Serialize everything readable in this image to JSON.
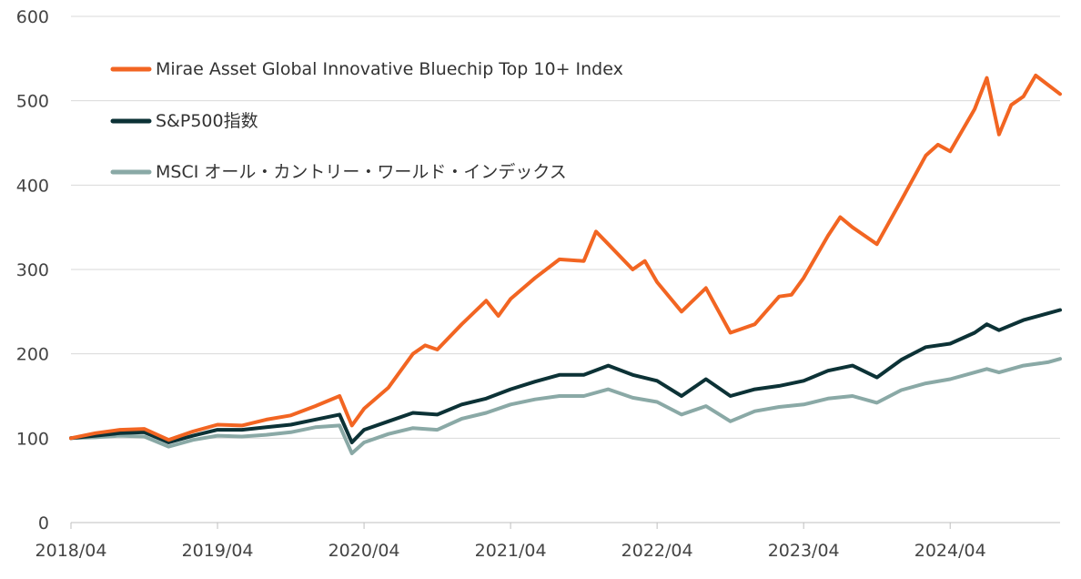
{
  "chart_data": {
    "type": "line",
    "title": "",
    "xlabel": "",
    "ylabel": "",
    "ylim": [
      0,
      600
    ],
    "xlim": [
      "2018/04",
      "2025/01"
    ],
    "y_ticks": [
      0,
      100,
      200,
      300,
      400,
      500,
      600
    ],
    "x_tick_labels": [
      "2018/04",
      "2019/04",
      "2020/04",
      "2021/04",
      "2022/04",
      "2023/04",
      "2024/04"
    ],
    "x_tick_dates": [
      "2018/04",
      "2019/04",
      "2020/04",
      "2021/04",
      "2022/04",
      "2023/04",
      "2024/04"
    ],
    "grid": "horizontal",
    "legend_position": "top-left",
    "series": [
      {
        "name": "Mirae Asset Global Innovative Bluechip Top 10+ Index",
        "color": "#f26522",
        "points": [
          [
            "2018/04",
            100
          ],
          [
            "2018/06",
            106
          ],
          [
            "2018/08",
            110
          ],
          [
            "2018/10",
            111
          ],
          [
            "2018/12",
            98
          ],
          [
            "2019/02",
            108
          ],
          [
            "2019/04",
            116
          ],
          [
            "2019/06",
            115
          ],
          [
            "2019/08",
            122
          ],
          [
            "2019/10",
            127
          ],
          [
            "2019/12",
            138
          ],
          [
            "2020/02",
            150
          ],
          [
            "2020/03",
            115
          ],
          [
            "2020/04",
            135
          ],
          [
            "2020/06",
            160
          ],
          [
            "2020/08",
            200
          ],
          [
            "2020/09",
            210
          ],
          [
            "2020/10",
            205
          ],
          [
            "2020/12",
            235
          ],
          [
            "2021/02",
            263
          ],
          [
            "2021/03",
            245
          ],
          [
            "2021/04",
            265
          ],
          [
            "2021/06",
            290
          ],
          [
            "2021/08",
            312
          ],
          [
            "2021/10",
            310
          ],
          [
            "2021/11",
            345
          ],
          [
            "2021/12",
            330
          ],
          [
            "2022/02",
            300
          ],
          [
            "2022/03",
            310
          ],
          [
            "2022/04",
            285
          ],
          [
            "2022/06",
            250
          ],
          [
            "2022/08",
            278
          ],
          [
            "2022/10",
            225
          ],
          [
            "2022/12",
            235
          ],
          [
            "2023/02",
            268
          ],
          [
            "2023/03",
            270
          ],
          [
            "2023/04",
            290
          ],
          [
            "2023/06",
            340
          ],
          [
            "2023/07",
            362
          ],
          [
            "2023/08",
            350
          ],
          [
            "2023/10",
            330
          ],
          [
            "2023/12",
            382
          ],
          [
            "2024/02",
            435
          ],
          [
            "2024/03",
            448
          ],
          [
            "2024/04",
            440
          ],
          [
            "2024/06",
            490
          ],
          [
            "2024/07",
            527
          ],
          [
            "2024/08",
            460
          ],
          [
            "2024/09",
            495
          ],
          [
            "2024/10",
            505
          ],
          [
            "2024/11",
            530
          ],
          [
            "2025/01",
            508
          ]
        ]
      },
      {
        "name": "S&P500指数",
        "color": "#0c3236",
        "points": [
          [
            "2018/04",
            100
          ],
          [
            "2018/06",
            103
          ],
          [
            "2018/08",
            106
          ],
          [
            "2018/10",
            107
          ],
          [
            "2018/12",
            95
          ],
          [
            "2019/02",
            103
          ],
          [
            "2019/04",
            110
          ],
          [
            "2019/06",
            110
          ],
          [
            "2019/08",
            113
          ],
          [
            "2019/10",
            116
          ],
          [
            "2019/12",
            122
          ],
          [
            "2020/02",
            128
          ],
          [
            "2020/03",
            95
          ],
          [
            "2020/04",
            110
          ],
          [
            "2020/06",
            120
          ],
          [
            "2020/08",
            130
          ],
          [
            "2020/10",
            128
          ],
          [
            "2020/12",
            140
          ],
          [
            "2021/02",
            147
          ],
          [
            "2021/04",
            158
          ],
          [
            "2021/06",
            167
          ],
          [
            "2021/08",
            175
          ],
          [
            "2021/10",
            175
          ],
          [
            "2021/12",
            186
          ],
          [
            "2022/02",
            175
          ],
          [
            "2022/04",
            168
          ],
          [
            "2022/06",
            150
          ],
          [
            "2022/08",
            170
          ],
          [
            "2022/10",
            150
          ],
          [
            "2022/12",
            158
          ],
          [
            "2023/02",
            162
          ],
          [
            "2023/04",
            168
          ],
          [
            "2023/06",
            180
          ],
          [
            "2023/08",
            186
          ],
          [
            "2023/10",
            172
          ],
          [
            "2023/12",
            193
          ],
          [
            "2024/02",
            208
          ],
          [
            "2024/04",
            212
          ],
          [
            "2024/06",
            225
          ],
          [
            "2024/07",
            235
          ],
          [
            "2024/08",
            228
          ],
          [
            "2024/10",
            240
          ],
          [
            "2024/12",
            248
          ],
          [
            "2025/01",
            252
          ]
        ]
      },
      {
        "name": "MSCI オール・カントリー・ワールド・インデックス",
        "color": "#8aa9a6",
        "points": [
          [
            "2018/04",
            100
          ],
          [
            "2018/06",
            101
          ],
          [
            "2018/08",
            103
          ],
          [
            "2018/10",
            102
          ],
          [
            "2018/12",
            90
          ],
          [
            "2019/02",
            98
          ],
          [
            "2019/04",
            103
          ],
          [
            "2019/06",
            102
          ],
          [
            "2019/08",
            104
          ],
          [
            "2019/10",
            107
          ],
          [
            "2019/12",
            113
          ],
          [
            "2020/02",
            115
          ],
          [
            "2020/03",
            82
          ],
          [
            "2020/04",
            95
          ],
          [
            "2020/06",
            105
          ],
          [
            "2020/08",
            112
          ],
          [
            "2020/10",
            110
          ],
          [
            "2020/12",
            123
          ],
          [
            "2021/02",
            130
          ],
          [
            "2021/04",
            140
          ],
          [
            "2021/06",
            146
          ],
          [
            "2021/08",
            150
          ],
          [
            "2021/10",
            150
          ],
          [
            "2021/12",
            158
          ],
          [
            "2022/02",
            148
          ],
          [
            "2022/04",
            143
          ],
          [
            "2022/06",
            128
          ],
          [
            "2022/08",
            138
          ],
          [
            "2022/10",
            120
          ],
          [
            "2022/12",
            132
          ],
          [
            "2023/02",
            137
          ],
          [
            "2023/04",
            140
          ],
          [
            "2023/06",
            147
          ],
          [
            "2023/08",
            150
          ],
          [
            "2023/10",
            142
          ],
          [
            "2023/12",
            157
          ],
          [
            "2024/02",
            165
          ],
          [
            "2024/04",
            170
          ],
          [
            "2024/06",
            178
          ],
          [
            "2024/07",
            182
          ],
          [
            "2024/08",
            178
          ],
          [
            "2024/10",
            186
          ],
          [
            "2024/12",
            190
          ],
          [
            "2025/01",
            194
          ]
        ]
      }
    ]
  }
}
